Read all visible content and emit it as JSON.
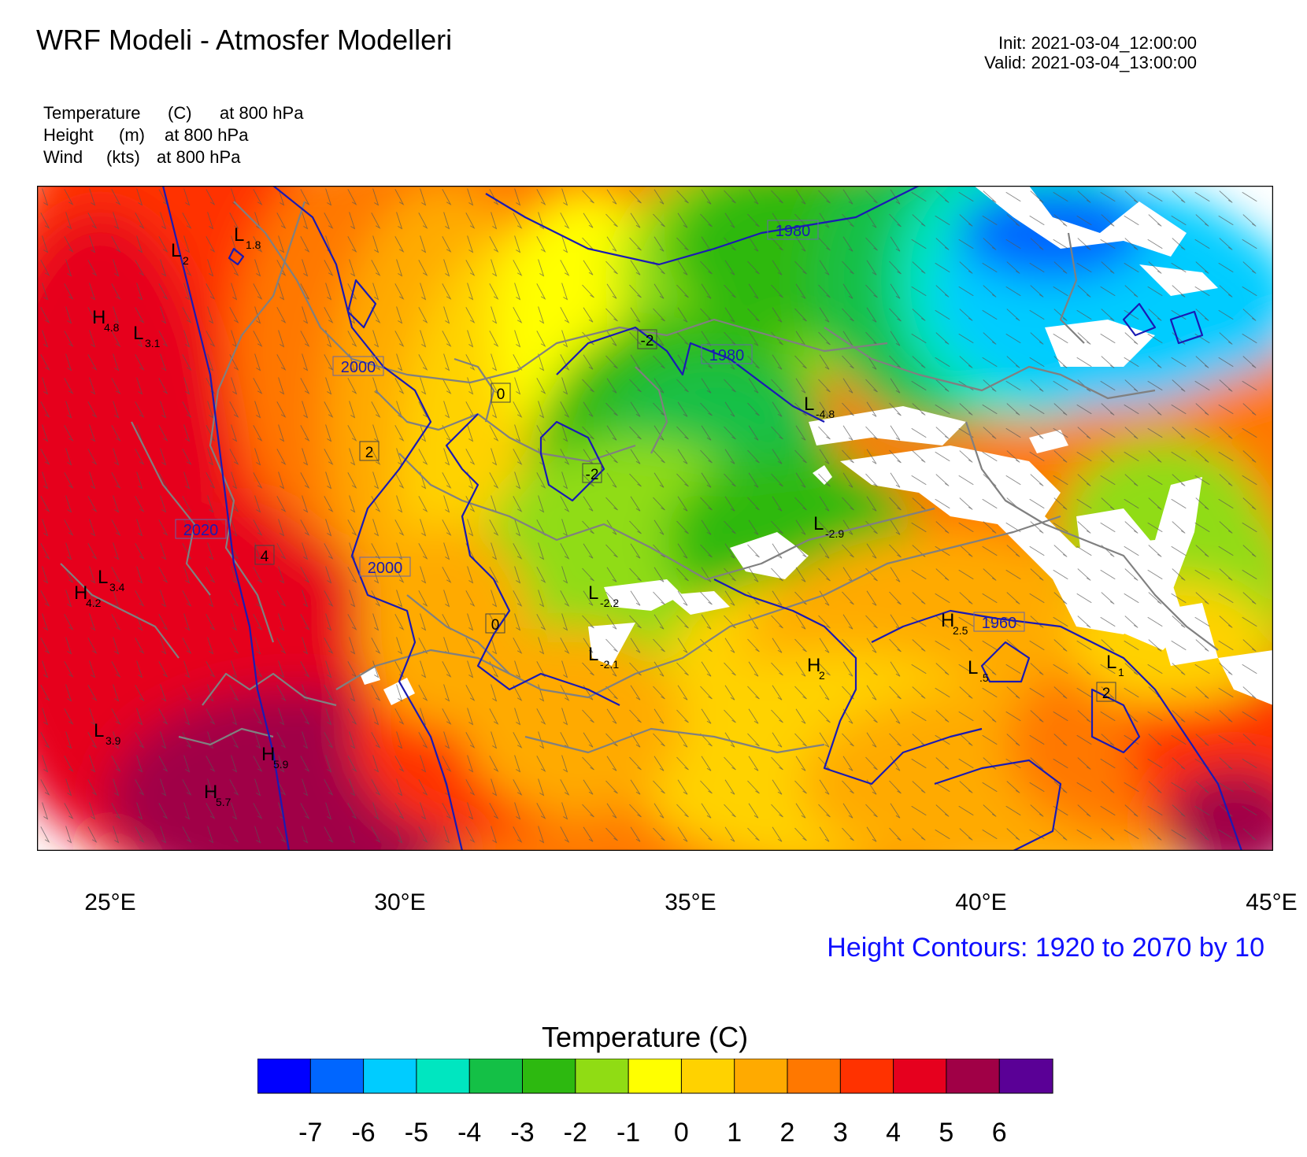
{
  "header": {
    "title": "WRF Modeli - Atmosfer Modelleri",
    "init": "Init: 2021-03-04_12:00:00",
    "valid": "Valid: 2021-03-04_13:00:00"
  },
  "fields": [
    {
      "name": "Temperature",
      "unit": "(C)",
      "level": "at   800 hPa"
    },
    {
      "name": "Height",
      "unit": "(m)",
      "level": "at   800 hPa"
    },
    {
      "name": "Wind",
      "unit": "(kts)",
      "level": "at   800 hPa"
    }
  ],
  "lon_labels": [
    "25°E",
    "30°E",
    "35°E",
    "40°E",
    "45°E"
  ],
  "contour_note": "Height Contours: 1920 to 2070 by 10",
  "colorbar": {
    "title": "Temperature  (C)",
    "colors": [
      "#0000ff",
      "#0066ff",
      "#00ccff",
      "#00e6c0",
      "#14c046",
      "#2db910",
      "#90dc14",
      "#ffff00",
      "#ffd200",
      "#ffaa00",
      "#ff7800",
      "#ff3200",
      "#e6001e",
      "#a00046",
      "#5a0096"
    ],
    "labels": [
      "-7",
      "-6",
      "-5",
      "-4",
      "-3",
      "-2",
      "-1",
      "0",
      "1",
      "2",
      "3",
      "4",
      "5",
      "6"
    ]
  },
  "map_labels": {
    "height_contours": [
      "1980",
      "1980",
      "2000",
      "2020",
      "2000",
      "1960"
    ],
    "temp_contours": [
      "-2",
      "0",
      "2",
      "-2",
      "4",
      "0",
      "2"
    ],
    "pressure_centers": [
      {
        "letter": "L",
        "value": "1.8"
      },
      {
        "letter": "L",
        "value": "2"
      },
      {
        "letter": "H",
        "value": "4.8"
      },
      {
        "letter": "L",
        "value": "3.1"
      },
      {
        "letter": "L",
        "value": "-4.8"
      },
      {
        "letter": "L",
        "value": "-2.9"
      },
      {
        "letter": "L",
        "value": "3.4"
      },
      {
        "letter": "H",
        "value": "4.2"
      },
      {
        "letter": "L",
        "value": "-2.2"
      },
      {
        "letter": "L",
        "value": "-2.1"
      },
      {
        "letter": "H",
        "value": "2.5"
      },
      {
        "letter": "H",
        "value": "2"
      },
      {
        "letter": "L",
        "value": ".5"
      },
      {
        "letter": "L",
        "value": "1"
      },
      {
        "letter": "L",
        "value": "3.9"
      },
      {
        "letter": "H",
        "value": "5.9"
      },
      {
        "letter": "H",
        "value": "5.7"
      }
    ]
  },
  "colors": {
    "height_contour": "#1a1ab4",
    "border": "#808080",
    "no_data": "#ffffff"
  }
}
